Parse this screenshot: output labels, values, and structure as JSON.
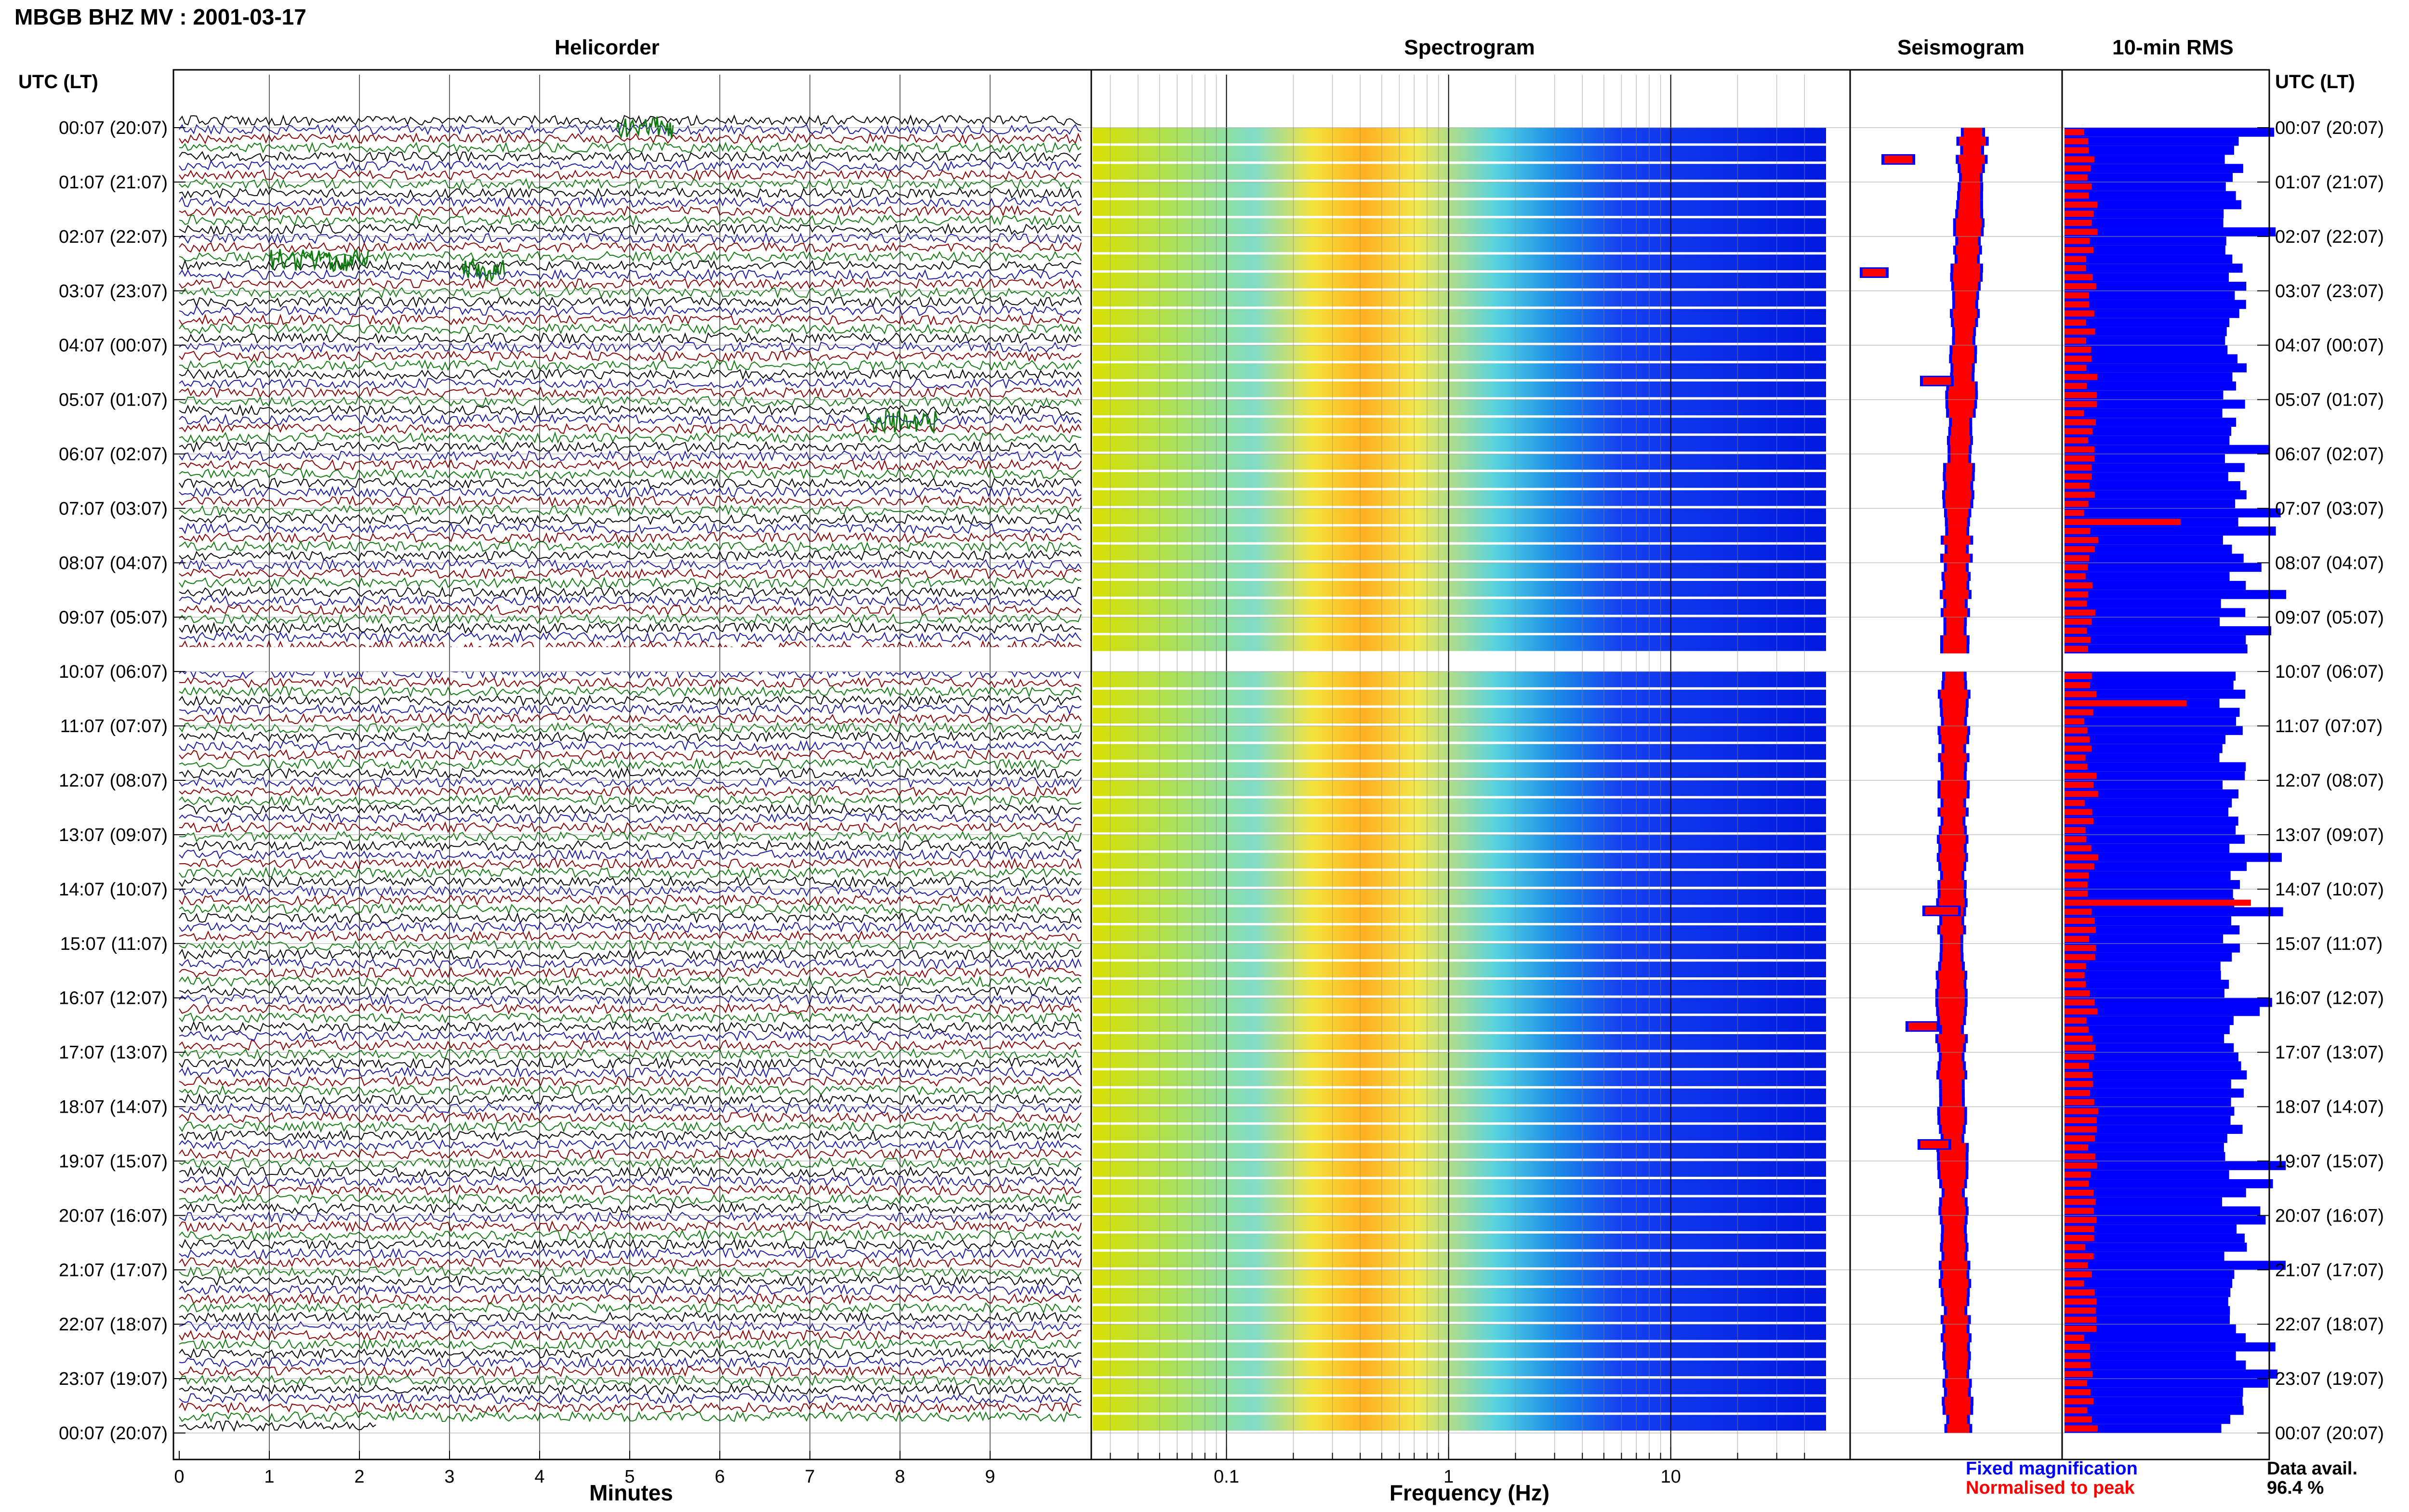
{
  "title": "MBGB BHZ MV : 2001-03-17",
  "left_axis_header": "UTC (LT)",
  "right_axis_header": "UTC (LT)",
  "panels": {
    "helicorder": "Helicorder",
    "spectrogram": "Spectrogram",
    "seismogram": "Seismogram",
    "rms": "10-min RMS"
  },
  "time_labels": [
    "00:07 (20:07)",
    "01:07 (21:07)",
    "02:07 (22:07)",
    "03:07 (23:07)",
    "04:07 (00:07)",
    "05:07 (01:07)",
    "06:07 (02:07)",
    "07:07 (03:07)",
    "08:07 (04:07)",
    "09:07 (05:07)",
    "10:07 (06:07)",
    "11:07 (07:07)",
    "12:07 (08:07)",
    "13:07 (09:07)",
    "14:07 (10:07)",
    "15:07 (11:07)",
    "16:07 (12:07)",
    "17:07 (13:07)",
    "18:07 (14:07)",
    "19:07 (15:07)",
    "20:07 (16:07)",
    "21:07 (17:07)",
    "22:07 (18:07)",
    "23:07 (19:07)",
    "00:07 (20:07)"
  ],
  "legend": {
    "fixed": "Fixed magnification",
    "normalised": "Normalised to peak",
    "avail_label": "Data avail.",
    "avail_value": "96.4 %"
  },
  "colors": {
    "trace_cycle": [
      "#000000",
      "#1a1aa6",
      "#8b0000",
      "#0f7a0f"
    ],
    "fixed": "#0000ff",
    "normalised": "#ff0000",
    "spectro_low": "#0000ff",
    "spectro_mid": "#00bfbf",
    "spectro_high": "#ffd400",
    "spectro_peak": "#ff4000"
  },
  "chart_data": [
    {
      "type": "line",
      "name": "helicorder",
      "title": "Helicorder",
      "xlabel": "Minutes",
      "x_ticks": [
        "0",
        "1",
        "2",
        "3",
        "4",
        "5",
        "6",
        "7",
        "8",
        "9"
      ],
      "xlim": [
        0,
        10
      ],
      "note_rows": "144 traces of 10 min each, colour cycle black/blue/red/green; data gap approx 09:37-10:07 UTC"
    },
    {
      "type": "heatmap",
      "name": "spectrogram",
      "title": "Spectrogram",
      "xlabel": "Frequency (Hz)",
      "x_scale": "log",
      "xlim": [
        0.025,
        50
      ],
      "x_ticks": [
        "0.1",
        "1",
        "10"
      ],
      "peak_band_hz": [
        0.2,
        0.6
      ],
      "rolloff_hz": 2
    },
    {
      "type": "line",
      "name": "seismogram",
      "title": "Seismogram"
    },
    {
      "type": "bar",
      "name": "rms",
      "title": "10-min RMS",
      "series": [
        {
          "name": "Fixed magnification",
          "color": "#0000ff"
        },
        {
          "name": "Normalised to peak",
          "color": "#ff0000"
        }
      ]
    }
  ]
}
